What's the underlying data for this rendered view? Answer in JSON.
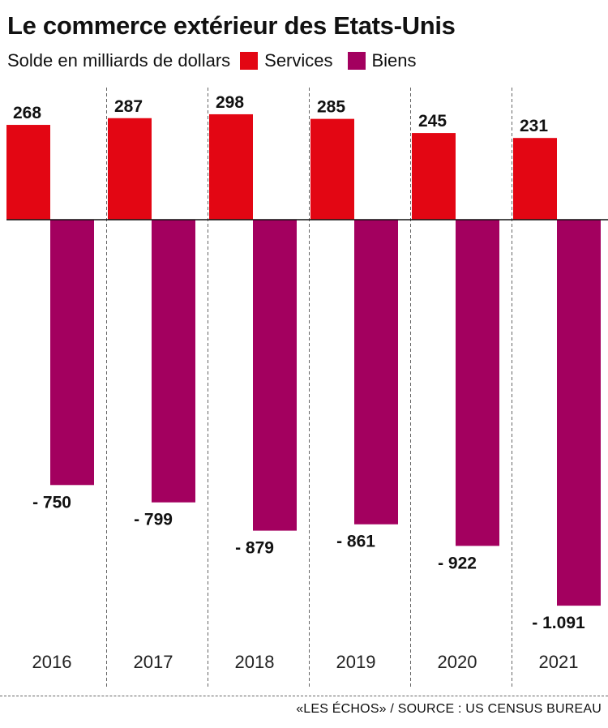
{
  "header": {
    "title": "Le commerce extérieur des Etats-Unis",
    "subtitle": "Solde en milliards de dollars"
  },
  "legend": [
    {
      "label": "Services",
      "color": "#e30613"
    },
    {
      "label": "Biens",
      "color": "#a3005f"
    }
  ],
  "chart_data": {
    "type": "bar",
    "title": "Le commerce extérieur des Etats-Unis",
    "subtitle": "Solde en milliards de dollars",
    "categories": [
      "2016",
      "2017",
      "2018",
      "2019",
      "2020",
      "2021"
    ],
    "series": [
      {
        "name": "Services",
        "color": "#e30613",
        "values": [
          268,
          287,
          298,
          285,
          245,
          231
        ],
        "labels": [
          "268",
          "287",
          "298",
          "285",
          "245",
          "231"
        ]
      },
      {
        "name": "Biens",
        "color": "#a3005f",
        "values": [
          -750,
          -799,
          -879,
          -861,
          -922,
          -1091
        ],
        "labels": [
          "- 750",
          "- 799",
          "- 879",
          "- 861",
          "- 922",
          "- 1.091"
        ]
      }
    ],
    "ylim": [
      -1091,
      298
    ],
    "grid": false,
    "legend_position": "top-left"
  },
  "footer": {
    "source": "«LES ÉCHOS» / SOURCE : US CENSUS BUREAU"
  }
}
